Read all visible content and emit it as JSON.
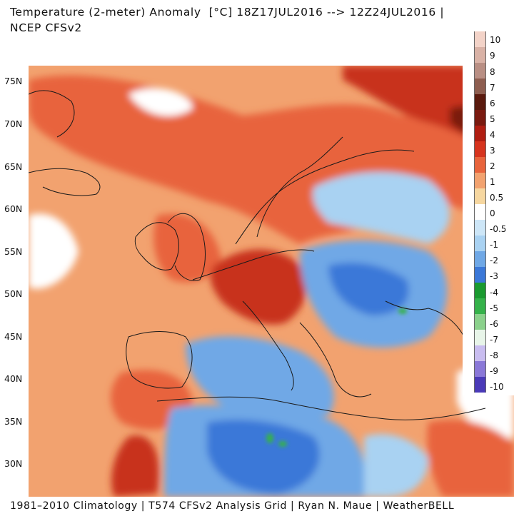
{
  "header": {
    "title": "Temperature (2-meter) Anomaly  [°C] 18Z17JUL2016 --> 12Z24JUL2016 |",
    "subtitle": "NCEP CFSv2"
  },
  "map": {
    "latitude_labels": [
      "75N",
      "70N",
      "65N",
      "60N",
      "55N",
      "50N",
      "45N",
      "40N",
      "35N",
      "30N"
    ],
    "palette": {
      "warm_base": "#f2a26f",
      "warm_strong": "#e8643c",
      "very_warm": "#c8321e",
      "darkest_red": "#7a1a10",
      "neutral": "#ffffff",
      "cool_light": "#a9d2f2",
      "cool": "#6fa8e6",
      "cool_strong": "#3b78d8",
      "green": "#35b24a",
      "border_lines": "#1a1a1a"
    }
  },
  "colorbar": {
    "labels": [
      "10",
      "9",
      "8",
      "7",
      "6",
      "5",
      "4",
      "3",
      "2",
      "1",
      "0.5",
      "0",
      "-0.5",
      "-1",
      "-2",
      "-3",
      "-4",
      "-5",
      "-6",
      "-7",
      "-8",
      "-9",
      "-10"
    ],
    "colors": [
      "#f3d3c8",
      "#d9b2a6",
      "#b98f84",
      "#8e5e50",
      "#5a1a0e",
      "#7a1a10",
      "#b01e12",
      "#d6341e",
      "#e8643c",
      "#f2a26f",
      "#f6d7a0",
      "#ffffff",
      "#cde6f7",
      "#a9d2f2",
      "#6fa8e6",
      "#3b78d8",
      "#1a9a30",
      "#35b24a",
      "#8bd18c",
      "#e8f5e9",
      "#c9bdf0",
      "#8a78d8",
      "#4a3ab8"
    ]
  },
  "footer": {
    "text": "1981–2010 Climatology | T574 CFSv2 Analysis Grid | Ryan N. Maue | WeatherBELL"
  }
}
